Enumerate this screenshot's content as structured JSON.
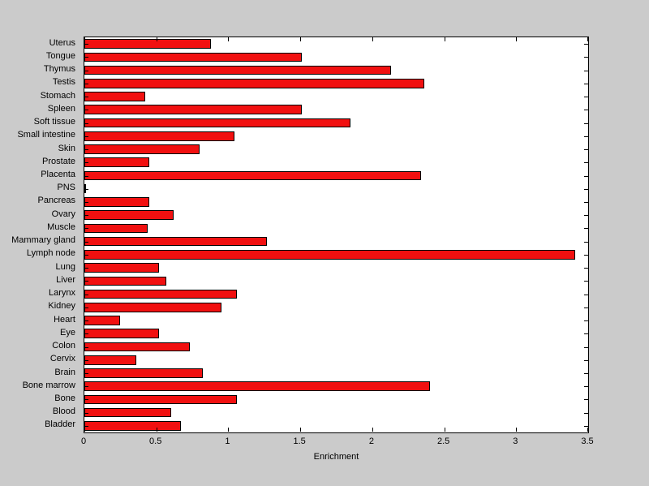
{
  "chart_data": {
    "type": "bar",
    "orientation": "horizontal",
    "title": "",
    "xlabel": "Enrichment",
    "ylabel": "",
    "xlim": [
      0,
      3.5
    ],
    "x_tick_labels": [
      "0",
      "0.5",
      "1",
      "1.5",
      "2",
      "2.5",
      "3",
      "3.5"
    ],
    "x_tick_values": [
      0,
      0.5,
      1,
      1.5,
      2,
      2.5,
      3,
      3.5
    ],
    "grid": false,
    "legend": null,
    "categories": [
      "Uterus",
      "Tongue",
      "Thymus",
      "Testis",
      "Stomach",
      "Spleen",
      "Soft tissue",
      "Small intestine",
      "Skin",
      "Prostate",
      "Placenta",
      "PNS",
      "Pancreas",
      "Ovary",
      "Muscle",
      "Mammary gland",
      "Lymph node",
      "Lung",
      "Liver",
      "Larynx",
      "Kidney",
      "Heart",
      "Eye",
      "Colon",
      "Cervix",
      "Brain",
      "Bone marrow",
      "Bone",
      "Blood",
      "Bladder"
    ],
    "values": [
      0.88,
      1.51,
      2.13,
      2.36,
      0.42,
      1.51,
      1.85,
      1.04,
      0.8,
      0.45,
      2.34,
      0.01,
      0.45,
      0.62,
      0.44,
      1.27,
      3.41,
      0.52,
      0.57,
      1.06,
      0.95,
      0.25,
      0.52,
      0.73,
      0.36,
      0.82,
      2.4,
      1.06,
      0.6,
      0.67
    ]
  },
  "colors": {
    "bar_fill": "#f11010",
    "bar_edge": "#000000",
    "plot_background": "#ffffff",
    "figure_background": "#cbcbcb",
    "text": "#000000"
  }
}
